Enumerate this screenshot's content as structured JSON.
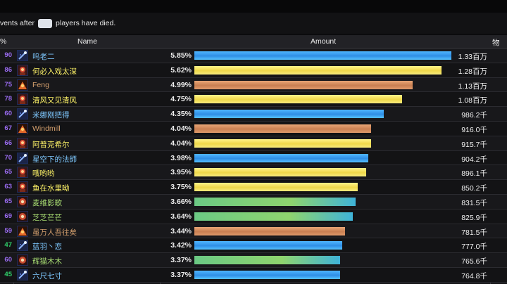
{
  "filter": {
    "prefix": "vents after",
    "input_value": "",
    "suffix": "players have died."
  },
  "columns": {
    "rank": "%",
    "name": "Name",
    "amount": "Amount",
    "extra": "物"
  },
  "colors": {
    "priest_name": "#ffffff",
    "mage_name": "#3fc7eb",
    "warlock_name": "#8788ee",
    "rogue_name": "#fff468",
    "monk_name": "#00ff98",
    "warrior_name": "#c69b6d",
    "hunter_name": "#aad372",
    "bar_blue": "#3a9ff2",
    "bar_yellow": "#f5e66a",
    "bar_orange": "#d58e5e",
    "bar_green": "#6ec880"
  },
  "rows": [
    {
      "rank": "90",
      "name": "呜老二",
      "pct": "5.85%",
      "amount": "1.33百万",
      "fraction": 0.99,
      "bar": "blue",
      "nameColor": "#7ec8ff",
      "icon": "staff-icon",
      "rankColor": "purple"
    },
    {
      "rank": "86",
      "name": "何必入戏太深",
      "pct": "5.62%",
      "amount": "1.28百万",
      "fraction": 0.95,
      "bar": "yellow",
      "nameColor": "#fff468",
      "icon": "mage-portrait-icon",
      "rankColor": "purple"
    },
    {
      "rank": "75",
      "name": "Feng",
      "pct": "4.99%",
      "amount": "1.13百万",
      "fraction": 0.84,
      "bar": "orange",
      "nameColor": "#d5a06e",
      "icon": "demon-portrait-icon",
      "rankColor": "purple"
    },
    {
      "rank": "78",
      "name": "清风又见清风",
      "pct": "4.75%",
      "amount": "1.08百万",
      "fraction": 0.8,
      "bar": "yellow",
      "nameColor": "#fff468",
      "icon": "mage-portrait-icon",
      "rankColor": "purple"
    },
    {
      "rank": "60",
      "name": "米娜刚把得",
      "pct": "4.35%",
      "amount": "986.2千",
      "fraction": 0.73,
      "bar": "blue",
      "nameColor": "#7ec8ff",
      "icon": "staff-icon",
      "rankColor": "purple"
    },
    {
      "rank": "67",
      "name": "Windmill",
      "pct": "4.04%",
      "amount": "916.0千",
      "fraction": 0.68,
      "bar": "orange",
      "nameColor": "#d5a06e",
      "icon": "demon-portrait-icon",
      "rankColor": "purple"
    },
    {
      "rank": "66",
      "name": "阿普克希尔",
      "pct": "4.04%",
      "amount": "915.7千",
      "fraction": 0.68,
      "bar": "yellow",
      "nameColor": "#fff468",
      "icon": "mage-portrait-icon",
      "rankColor": "purple"
    },
    {
      "rank": "70",
      "name": "星空下的法師",
      "pct": "3.98%",
      "amount": "904.2千",
      "fraction": 0.67,
      "bar": "blue",
      "nameColor": "#7ec8ff",
      "icon": "staff-icon",
      "rankColor": "purple"
    },
    {
      "rank": "65",
      "name": "哦哟哟",
      "pct": "3.95%",
      "amount": "896.1千",
      "fraction": 0.66,
      "bar": "yellow",
      "nameColor": "#fff468",
      "icon": "mage-portrait-icon",
      "rankColor": "purple"
    },
    {
      "rank": "63",
      "name": "鱼在水里呦",
      "pct": "3.75%",
      "amount": "850.2千",
      "fraction": 0.63,
      "bar": "yellow",
      "nameColor": "#fff468",
      "icon": "mage-portrait-icon",
      "rankColor": "purple"
    },
    {
      "rank": "65",
      "name": "麦维影歌",
      "pct": "3.66%",
      "amount": "831.5千",
      "fraction": 0.62,
      "bar": "green",
      "nameColor": "#a8dc72",
      "icon": "hunter-portrait-icon",
      "rankColor": "purple"
    },
    {
      "rank": "69",
      "name": "芝芝芒芒",
      "pct": "3.64%",
      "amount": "825.9千",
      "fraction": 0.61,
      "bar": "green",
      "nameColor": "#a8dc72",
      "icon": "hunter-portrait-icon",
      "rankColor": "purple"
    },
    {
      "rank": "59",
      "name": "虽万人吾往矣",
      "pct": "3.44%",
      "amount": "781.5千",
      "fraction": 0.58,
      "bar": "orange",
      "nameColor": "#d5a06e",
      "icon": "demon-portrait-icon",
      "rankColor": "purple"
    },
    {
      "rank": "47",
      "name": "蓝羽丶恋",
      "pct": "3.42%",
      "amount": "777.0千",
      "fraction": 0.57,
      "bar": "blue",
      "nameColor": "#7ec8ff",
      "icon": "staff-icon",
      "rankColor": "green"
    },
    {
      "rank": "60",
      "name": "辉猫木木",
      "pct": "3.37%",
      "amount": "765.6千",
      "fraction": 0.56,
      "bar": "green",
      "nameColor": "#a8dc72",
      "icon": "hunter-portrait-icon",
      "rankColor": "purple"
    },
    {
      "rank": "45",
      "name": "六尺七寸",
      "pct": "3.37%",
      "amount": "764.8千",
      "fraction": 0.56,
      "bar": "blue",
      "nameColor": "#7ec8ff",
      "icon": "staff-icon",
      "rankColor": "green"
    }
  ]
}
